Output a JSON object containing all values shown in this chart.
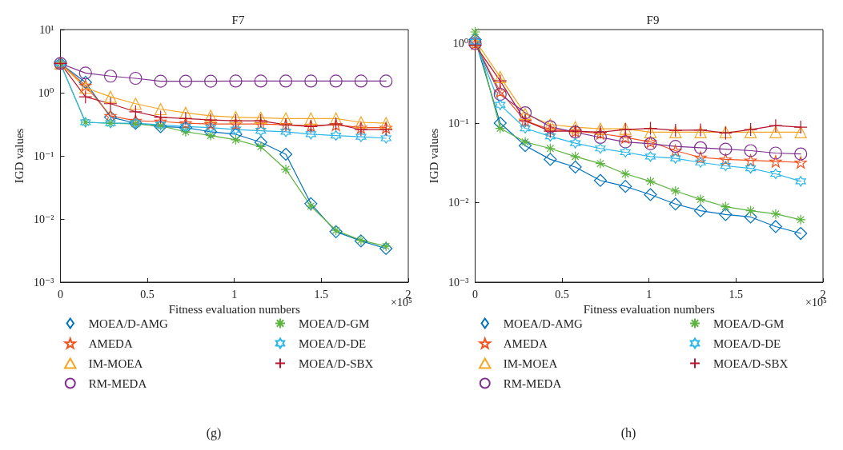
{
  "chart_data": [
    {
      "type": "line",
      "title": "F7",
      "xlabel": "Fitness evaluation numbers",
      "ylabel": "IGD values",
      "annotations": [
        "×10⁵",
        "(g)"
      ],
      "log": "y",
      "grid": false,
      "legend": "bottom",
      "line_style": "solid",
      "x": [
        0,
        0.144,
        0.288,
        0.432,
        0.576,
        0.72,
        0.864,
        1.008,
        1.152,
        1.296,
        1.44,
        1.584,
        1.728,
        1.872
      ],
      "xlim": [
        0,
        2
      ],
      "xticks": [
        0,
        0.5,
        1,
        1.5,
        2
      ],
      "ylim": [
        0.001,
        10
      ],
      "yticks": [
        {
          "value": 0.001,
          "label": "10⁻³"
        },
        {
          "value": 0.01,
          "label": "10⁻²"
        },
        {
          "value": 0.1,
          "label": "10⁻¹"
        },
        {
          "value": 1,
          "label": "10⁰"
        },
        {
          "value": 10,
          "label": "10¹"
        }
      ],
      "series": [
        {
          "name": "MOEA/D-AMG",
          "color": "#0072bd",
          "marker": "diamond",
          "values": [
            2.9,
            1.46,
            0.41,
            0.33,
            0.29,
            0.28,
            0.24,
            0.22,
            0.164,
            0.106,
            0.0175,
            0.0063,
            0.0045,
            0.0034
          ]
        },
        {
          "name": "AMEDA",
          "color": "#f4511e",
          "marker": "star",
          "values": [
            2.9,
            1.3,
            0.43,
            0.36,
            0.35,
            0.33,
            0.32,
            0.32,
            0.32,
            0.31,
            0.3,
            0.31,
            0.28,
            0.28
          ]
        },
        {
          "name": "IM-MOEA",
          "color": "#f5a623",
          "marker": "triangle",
          "values": [
            2.9,
            1.2,
            0.86,
            0.67,
            0.55,
            0.48,
            0.43,
            0.41,
            0.4,
            0.39,
            0.39,
            0.39,
            0.34,
            0.33
          ]
        },
        {
          "name": "RM-MEDA",
          "color": "#7e2f8e",
          "marker": "circle",
          "values": [
            2.9,
            2.05,
            1.83,
            1.69,
            1.52,
            1.52,
            1.52,
            1.53,
            1.53,
            1.53,
            1.53,
            1.53,
            1.53,
            1.53
          ]
        },
        {
          "name": "MOEA/D-GM",
          "color": "#5cb33f",
          "marker": "cross",
          "values": [
            2.9,
            0.34,
            0.33,
            0.32,
            0.3,
            0.24,
            0.21,
            0.18,
            0.14,
            0.061,
            0.016,
            0.0066,
            0.0046,
            0.0037
          ]
        },
        {
          "name": "MOEA/D-DE",
          "color": "#29b6e8",
          "marker": "cross",
          "values": [
            2.9,
            0.34,
            0.33,
            0.33,
            0.31,
            0.29,
            0.28,
            0.26,
            0.25,
            0.24,
            0.22,
            0.21,
            0.2,
            0.19
          ]
        },
        {
          "name": "MOEA/D-SBX",
          "color": "#b5152b",
          "marker": "plus",
          "values": [
            2.9,
            0.86,
            0.67,
            0.5,
            0.41,
            0.39,
            0.37,
            0.36,
            0.36,
            0.31,
            0.29,
            0.32,
            0.26,
            0.26
          ]
        }
      ]
    },
    {
      "type": "line",
      "title": "F9",
      "xlabel": "Fitness evaluation numbers",
      "ylabel": "IGD values",
      "annotations": [
        "×10⁵",
        "(h)"
      ],
      "log": "y",
      "grid": false,
      "legend": "bottom",
      "line_style": "solid",
      "x": [
        0,
        0.144,
        0.288,
        0.432,
        0.576,
        0.72,
        0.864,
        1.008,
        1.152,
        1.296,
        1.44,
        1.584,
        1.728,
        1.872
      ],
      "xlim": [
        0,
        2
      ],
      "xticks": [
        0,
        0.5,
        1,
        1.5,
        2
      ],
      "ylim": [
        0.001,
        1.5
      ],
      "yticks": [
        {
          "value": 0.001,
          "label": "10⁻³"
        },
        {
          "value": 0.01,
          "label": "10⁻²"
        },
        {
          "value": 0.1,
          "label": "10⁻¹"
        },
        {
          "value": 1,
          "label": "10⁰"
        }
      ],
      "series": [
        {
          "name": "MOEA/D-AMG",
          "color": "#0072bd",
          "marker": "diamond",
          "values": [
            1.12,
            0.1,
            0.052,
            0.035,
            0.028,
            0.019,
            0.016,
            0.0126,
            0.0096,
            0.0079,
            0.0071,
            0.0066,
            0.005,
            0.0041
          ]
        },
        {
          "name": "AMEDA",
          "color": "#f4511e",
          "marker": "star",
          "values": [
            1.0,
            0.25,
            0.107,
            0.083,
            0.079,
            0.074,
            0.066,
            0.058,
            0.045,
            0.037,
            0.035,
            0.034,
            0.033,
            0.032
          ]
        },
        {
          "name": "IM-MOEA",
          "color": "#f5a623",
          "marker": "triangle",
          "values": [
            1.1,
            0.38,
            0.13,
            0.096,
            0.089,
            0.085,
            0.085,
            0.077,
            0.077,
            0.077,
            0.077,
            0.077,
            0.077,
            0.077
          ]
        },
        {
          "name": "RM-MEDA",
          "color": "#7e2f8e",
          "marker": "circle",
          "values": [
            1.0,
            0.23,
            0.135,
            0.09,
            0.077,
            0.066,
            0.058,
            0.055,
            0.051,
            0.049,
            0.047,
            0.045,
            0.042,
            0.041
          ]
        },
        {
          "name": "MOEA/D-GM",
          "color": "#5cb33f",
          "marker": "cross",
          "values": [
            1.4,
            0.086,
            0.058,
            0.048,
            0.038,
            0.031,
            0.023,
            0.0185,
            0.014,
            0.011,
            0.0089,
            0.0079,
            0.0072,
            0.0061
          ]
        },
        {
          "name": "MOEA/D-DE",
          "color": "#29b6e8",
          "marker": "cross",
          "values": [
            1.05,
            0.17,
            0.086,
            0.068,
            0.056,
            0.048,
            0.043,
            0.038,
            0.036,
            0.032,
            0.029,
            0.027,
            0.023,
            0.0185
          ]
        },
        {
          "name": "MOEA/D-SBX",
          "color": "#b5152b",
          "marker": "plus",
          "values": [
            0.96,
            0.34,
            0.107,
            0.079,
            0.079,
            0.077,
            0.083,
            0.086,
            0.081,
            0.082,
            0.075,
            0.083,
            0.093,
            0.089
          ]
        }
      ]
    }
  ]
}
